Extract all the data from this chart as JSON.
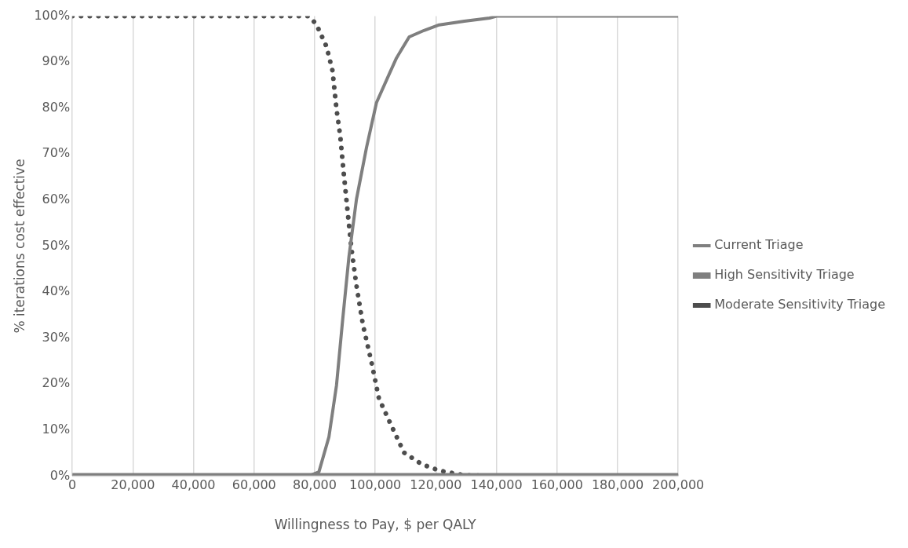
{
  "chart_data": {
    "type": "line",
    "xlabel": "Willingness to Pay, $ per QALY",
    "ylabel": "% iterations cost effective",
    "xlim": [
      0,
      200000
    ],
    "ylim": [
      0,
      100
    ],
    "xticks": [
      0,
      {
        "value": 20000,
        "label": "20,000"
      },
      {
        "value": 40000,
        "label": "40,000"
      },
      {
        "value": 60000,
        "label": "60,000"
      },
      {
        "value": 80000,
        "label": "80,000"
      },
      {
        "value": 100000,
        "label": "100,000"
      },
      {
        "value": 120000,
        "label": "120,000"
      },
      {
        "value": 140000,
        "label": "140,000"
      },
      {
        "value": 160000,
        "label": "160,000"
      },
      {
        "value": 180000,
        "label": "180,000"
      },
      {
        "value": 200000,
        "label": "200,000"
      }
    ],
    "yticks": [
      {
        "value": 0,
        "label": "0%"
      },
      {
        "value": 10,
        "label": "10%"
      },
      {
        "value": 20,
        "label": "20%"
      },
      {
        "value": 30,
        "label": "30%"
      },
      {
        "value": 40,
        "label": "40%"
      },
      {
        "value": 50,
        "label": "50%"
      },
      {
        "value": 60,
        "label": "60%"
      },
      {
        "value": 70,
        "label": "70%"
      },
      {
        "value": 80,
        "label": "80%"
      },
      {
        "value": 90,
        "label": "90%"
      },
      {
        "value": 100,
        "label": "100%"
      }
    ],
    "grid": "x",
    "legend": "right",
    "marker": "none",
    "series": [
      {
        "name": "Current Triage",
        "color": "#7f7f7f",
        "line_style": "solid",
        "x": [
          0,
          78000,
          81400,
          84700,
          87200,
          89200,
          91300,
          93800,
          97100,
          100400,
          104600,
          107000,
          111200,
          116100,
          121100,
          129400,
          137700,
          140000,
          200000
        ],
        "values": [
          0,
          0,
          0.9,
          8.5,
          19.7,
          33.7,
          47.6,
          60.2,
          71.4,
          81.2,
          87.4,
          90.9,
          95.5,
          96.9,
          98.1,
          98.9,
          99.6,
          100,
          100
        ]
      },
      {
        "name": "High Sensitivity Triage",
        "color": "#7f7f7f",
        "line_style": "solid",
        "x": [
          0,
          200000
        ],
        "values": [
          0,
          0
        ]
      },
      {
        "name": "Moderate Sensitivity Triage",
        "color": "#4d4d4d",
        "line_style": "dotted",
        "x": [
          0,
          78000,
          80500,
          83900,
          85900,
          87200,
          88400,
          89600,
          90900,
          92100,
          93800,
          95900,
          98800,
          101200,
          104600,
          109500,
          115300,
          121100,
          129400,
          140000,
          200000
        ],
        "values": [
          100,
          100,
          98.3,
          93.4,
          88.1,
          79.8,
          74.2,
          65.8,
          57.4,
          49.7,
          41.4,
          33,
          24.6,
          16.9,
          12,
          5.1,
          2.6,
          1.2,
          0.2,
          0,
          0
        ]
      }
    ]
  }
}
